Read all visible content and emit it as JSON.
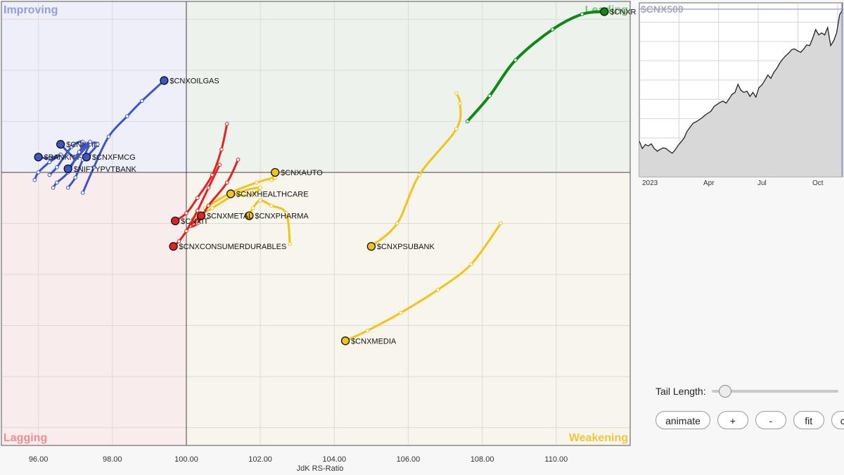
{
  "chart_data": {
    "type": "scatter",
    "xlabel": "JdK RS-Ratio",
    "ylabel": "",
    "xlim": [
      95.0,
      112.0
    ],
    "ylim": [
      94.65,
      103.35
    ],
    "x_ticks": [
      "96.00",
      "98.00",
      "100.00",
      "102.00",
      "104.00",
      "106.00",
      "108.00",
      "110.00"
    ],
    "x_tick_values": [
      96,
      98,
      100,
      102,
      104,
      106,
      108,
      110
    ],
    "center": [
      100,
      100
    ],
    "quadrants": {
      "improving": "Improving",
      "leading": "Leading",
      "weakening": "Weakening",
      "lagging": "Lagging"
    },
    "colors": {
      "improving": "#3d55c8",
      "leading": "#0b8a14",
      "weakening": "#f0c419",
      "lagging": "#e32222"
    },
    "series": [
      {
        "name": "$CNXOILGAS",
        "quadrant": "improving",
        "points": [
          [
            97.2,
            99.6
          ],
          [
            97.5,
            100.1
          ],
          [
            97.9,
            100.7
          ],
          [
            98.4,
            101.1
          ],
          [
            98.8,
            101.4
          ],
          [
            99.4,
            101.8
          ]
        ]
      },
      {
        "name": "$CNXFIN",
        "quadrant": "improving",
        "points": [
          [
            96.3,
            99.95
          ],
          [
            96.5,
            100.1
          ],
          [
            96.9,
            100.5
          ],
          [
            97.2,
            100.6
          ],
          [
            97.0,
            100.3
          ],
          [
            96.6,
            100.55
          ]
        ]
      },
      {
        "name": "$BANKNIFTY",
        "quadrant": "improving",
        "points": [
          [
            95.9,
            99.85
          ],
          [
            96.0,
            100.0
          ],
          [
            96.3,
            100.2
          ],
          [
            96.6,
            100.35
          ],
          [
            96.3,
            100.28
          ],
          [
            96.0,
            100.3
          ]
        ]
      },
      {
        "name": "$CNXFMCG",
        "quadrant": "improving",
        "points": [
          [
            96.8,
            99.7
          ],
          [
            97.0,
            99.9
          ],
          [
            97.2,
            100.25
          ],
          [
            97.4,
            100.55
          ],
          [
            97.6,
            100.55
          ],
          [
            97.3,
            100.3
          ]
        ]
      },
      {
        "name": "$NIFTYPVTBANK",
        "quadrant": "improving",
        "points": [
          [
            96.4,
            99.7
          ],
          [
            96.5,
            99.8
          ],
          [
            96.8,
            100.0
          ],
          [
            97.1,
            100.4
          ],
          [
            97.4,
            100.6
          ],
          [
            96.8,
            100.07
          ]
        ]
      },
      {
        "name": "$CNXREALTY",
        "quadrant": "leading",
        "points": [
          [
            107.6,
            101.0
          ],
          [
            108.2,
            101.5
          ],
          [
            108.9,
            102.2
          ],
          [
            109.9,
            102.8
          ],
          [
            110.7,
            103.1
          ],
          [
            111.3,
            103.15
          ]
        ]
      },
      {
        "name": "$CNXAUTO",
        "quadrant": "weakening",
        "points": [
          [
            100.5,
            99.3
          ],
          [
            101.2,
            99.6
          ],
          [
            101.9,
            99.8
          ],
          [
            102.4,
            99.9
          ],
          [
            102.3,
            99.85
          ],
          [
            102.4,
            100.0
          ]
        ]
      },
      {
        "name": "$CNXHEALTHCARE",
        "quadrant": "weakening",
        "points": [
          [
            100.2,
            99.1
          ],
          [
            100.7,
            99.3
          ],
          [
            101.4,
            99.6
          ],
          [
            102.0,
            99.7
          ],
          [
            101.7,
            99.55
          ],
          [
            101.2,
            99.58
          ]
        ]
      },
      {
        "name": "$CNXPHARMA",
        "quadrant": "weakening",
        "points": [
          [
            102.8,
            98.6
          ],
          [
            102.7,
            99.2
          ],
          [
            102.3,
            99.35
          ],
          [
            102.0,
            99.45
          ],
          [
            101.8,
            99.3
          ],
          [
            101.7,
            99.15
          ]
        ]
      },
      {
        "name": "$CNXPSUBANK",
        "quadrant": "weakening",
        "points": [
          [
            107.3,
            101.55
          ],
          [
            107.4,
            101.35
          ],
          [
            107.3,
            100.85
          ],
          [
            106.3,
            99.95
          ],
          [
            105.7,
            99.0
          ],
          [
            105.0,
            98.55
          ]
        ]
      },
      {
        "name": "$CNXMEDIA",
        "quadrant": "weakening",
        "points": [
          [
            108.5,
            99.0
          ],
          [
            107.7,
            98.2
          ],
          [
            106.8,
            97.7
          ],
          [
            105.8,
            97.25
          ],
          [
            104.9,
            96.9
          ],
          [
            104.3,
            96.7
          ]
        ]
      },
      {
        "name": "$CNXMETAL",
        "quadrant": "lagging",
        "points": [
          [
            101.4,
            100.25
          ],
          [
            101.1,
            99.8
          ],
          [
            100.6,
            99.35
          ],
          [
            100.3,
            99.0
          ],
          [
            100.1,
            98.95
          ],
          [
            100.4,
            99.15
          ]
        ]
      },
      {
        "name": "$CNXIT",
        "quadrant": "lagging",
        "points": [
          [
            101.1,
            100.95
          ],
          [
            100.95,
            100.45
          ],
          [
            100.7,
            99.95
          ],
          [
            100.3,
            99.5
          ],
          [
            100.0,
            99.2
          ],
          [
            99.7,
            99.05
          ]
        ]
      },
      {
        "name": "$CNXCONSUMERDURABLES",
        "quadrant": "lagging",
        "points": [
          [
            100.9,
            100.15
          ],
          [
            100.6,
            99.7
          ],
          [
            100.3,
            99.25
          ],
          [
            100.0,
            98.85
          ],
          [
            99.8,
            98.65
          ],
          [
            99.65,
            98.55
          ]
        ]
      }
    ]
  },
  "mini_chart": {
    "title": "$CNX500",
    "x_ticks": [
      "2023",
      "Apr",
      "Jul",
      "Oct"
    ],
    "values": [
      53,
      42,
      48,
      46,
      49,
      42,
      38,
      41,
      43,
      42,
      38,
      35,
      40,
      47,
      52,
      58,
      68,
      74,
      80,
      82,
      85,
      88,
      92,
      95,
      98,
      105,
      108,
      111,
      113,
      110,
      116,
      123,
      126,
      138,
      129,
      126,
      128,
      120,
      126,
      119,
      133,
      137,
      144,
      152,
      147,
      156,
      162,
      170,
      176,
      181,
      185,
      190,
      191,
      188,
      186,
      191,
      197,
      196,
      207,
      220,
      212,
      215,
      212,
      223,
      196,
      203,
      215,
      242,
      250
    ],
    "colors": {
      "line": "#222222",
      "fill": "#d8d8d8",
      "title": "#a8a8c0"
    }
  },
  "controls": {
    "tail_length_label": "Tail Length:",
    "tail_length": 0.1,
    "buttons": [
      "animate",
      "+",
      "-",
      "fit",
      "ctr"
    ]
  }
}
